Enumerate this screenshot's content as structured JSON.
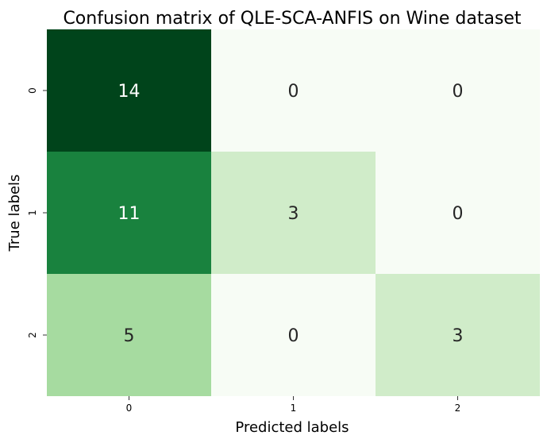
{
  "chart_data": {
    "type": "heatmap",
    "title": "Confusion matrix of QLE-SCA-ANFIS on Wine dataset",
    "xlabel": "Predicted labels",
    "ylabel": "True labels",
    "x_categories": [
      "0",
      "1",
      "2"
    ],
    "y_categories": [
      "0",
      "1",
      "2"
    ],
    "values": [
      [
        14,
        0,
        0
      ],
      [
        11,
        3,
        0
      ],
      [
        5,
        0,
        3
      ]
    ],
    "colormap": "Greens",
    "vmin": 0,
    "vmax": 14,
    "colorbar": false,
    "grid": false
  }
}
